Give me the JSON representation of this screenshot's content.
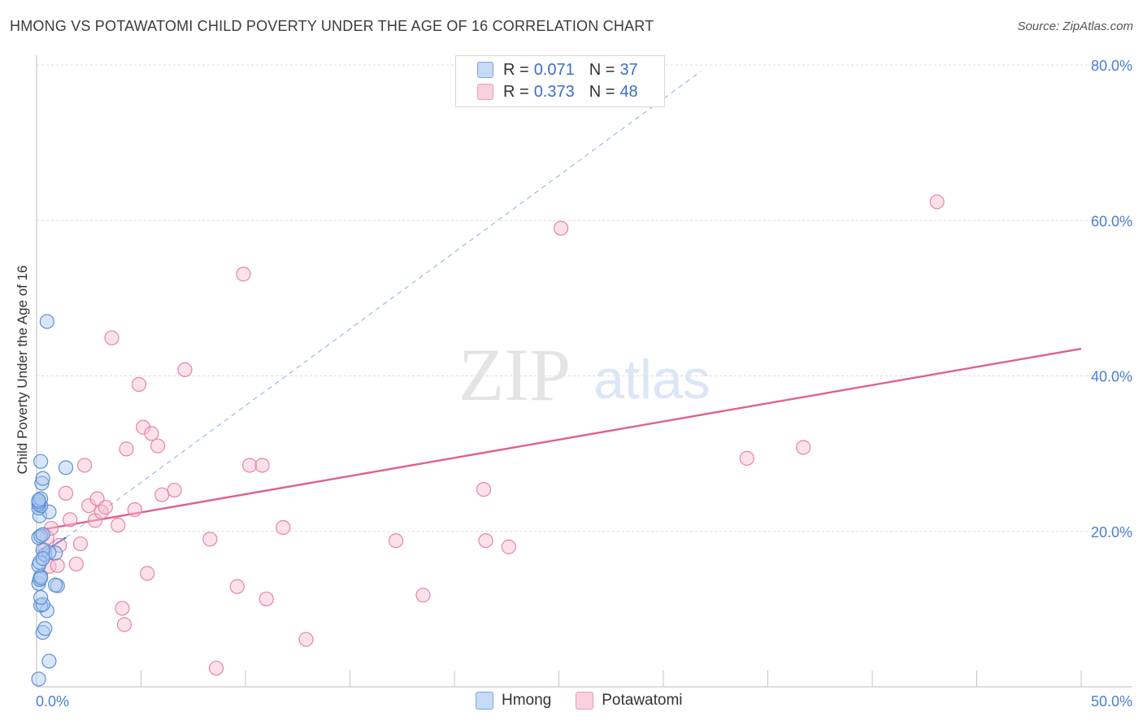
{
  "header": {
    "title": "HMONG VS POTAWATOMI CHILD POVERTY UNDER THE AGE OF 16 CORRELATION CHART",
    "source": "Source: ZipAtlas.com"
  },
  "watermark": {
    "zip": "ZIP",
    "atlas": "atlas"
  },
  "legend": {
    "hmong": {
      "r_label": "R =",
      "r_value": "0.071",
      "n_label": "N =",
      "n_value": "37"
    },
    "potawatomi": {
      "r_label": "R =",
      "r_value": "0.373",
      "n_label": "N =",
      "n_value": "48"
    }
  },
  "bottom_legend": {
    "hmong": "Hmong",
    "potawatomi": "Potawatomi"
  },
  "colors": {
    "hmong_fill": "#a9c8f0",
    "hmong_stroke": "#5b8fd6",
    "hmong_line": "#3f72c8",
    "potawatomi_fill": "#f6bfd0",
    "potawatomi_stroke": "#e9849f",
    "potawatomi_line": "#e0608e",
    "tick_text": "#4a7fd1",
    "grid": "#dcdcdc"
  },
  "chart_data": {
    "type": "scatter",
    "title": "HMONG VS POTAWATOMI CHILD POVERTY UNDER THE AGE OF 16 CORRELATION CHART",
    "xlabel": "",
    "ylabel": "Child Poverty Under the Age of 16",
    "xlim": [
      0,
      50
    ],
    "ylim": [
      0,
      80
    ],
    "x_tick_labels": [
      {
        "value": 0,
        "label": "0.0%"
      },
      {
        "value": 50,
        "label": "50.0%"
      }
    ],
    "y_tick_labels": [
      {
        "value": 20,
        "label": "20.0%"
      },
      {
        "value": 40,
        "label": "40.0%"
      },
      {
        "value": 60,
        "label": "60.0%"
      },
      {
        "value": 80,
        "label": "80.0%"
      }
    ],
    "x_minor_ticks": [
      5,
      10,
      15,
      20,
      25,
      30,
      35,
      40,
      45,
      50
    ],
    "y_gridlines": [
      20,
      40,
      60,
      80
    ],
    "series": [
      {
        "name": "Hmong",
        "key": "hmong",
        "points": [
          [
            0.1,
            1.0
          ],
          [
            0.6,
            3.3
          ],
          [
            0.3,
            7.0
          ],
          [
            0.4,
            7.5
          ],
          [
            0.5,
            9.8
          ],
          [
            0.2,
            10.5
          ],
          [
            0.3,
            10.6
          ],
          [
            0.2,
            11.5
          ],
          [
            1.0,
            13.0
          ],
          [
            0.9,
            13.1
          ],
          [
            0.1,
            13.3
          ],
          [
            0.15,
            13.8
          ],
          [
            0.2,
            14.2
          ],
          [
            0.1,
            15.6
          ],
          [
            0.15,
            16.0
          ],
          [
            0.4,
            17.0
          ],
          [
            0.9,
            17.2
          ],
          [
            0.6,
            17.3
          ],
          [
            0.3,
            17.6
          ],
          [
            0.1,
            19.2
          ],
          [
            0.2,
            19.4
          ],
          [
            0.3,
            19.6
          ],
          [
            0.15,
            22.0
          ],
          [
            0.6,
            22.5
          ],
          [
            0.1,
            23.0
          ],
          [
            0.2,
            23.3
          ],
          [
            0.1,
            23.5
          ],
          [
            0.1,
            23.8
          ],
          [
            0.2,
            24.2
          ],
          [
            0.25,
            26.2
          ],
          [
            0.3,
            26.8
          ],
          [
            0.2,
            29.0
          ],
          [
            1.4,
            28.2
          ],
          [
            0.5,
            47.0
          ],
          [
            0.1,
            24.0
          ],
          [
            0.2,
            14.0
          ],
          [
            0.3,
            16.5
          ]
        ],
        "trend": {
          "x": [
            0.0,
            1.4
          ],
          "y": [
            16.8,
            19.2
          ]
        },
        "trend_extended": {
          "x": [
            1.4,
            31.8
          ],
          "y": [
            19.2,
            79.2
          ]
        }
      },
      {
        "name": "Potawatomi",
        "key": "potawatomi",
        "points": [
          [
            0.4,
            17.6
          ],
          [
            0.5,
            19.2
          ],
          [
            0.6,
            15.5
          ],
          [
            0.7,
            20.4
          ],
          [
            1.0,
            15.6
          ],
          [
            1.1,
            18.2
          ],
          [
            1.4,
            24.9
          ],
          [
            1.6,
            21.5
          ],
          [
            1.9,
            15.8
          ],
          [
            2.1,
            18.4
          ],
          [
            2.3,
            28.5
          ],
          [
            2.5,
            23.3
          ],
          [
            2.8,
            21.4
          ],
          [
            2.9,
            24.2
          ],
          [
            3.1,
            22.5
          ],
          [
            3.3,
            23.1
          ],
          [
            3.6,
            44.9
          ],
          [
            3.9,
            20.8
          ],
          [
            4.1,
            10.1
          ],
          [
            4.2,
            8.0
          ],
          [
            4.3,
            30.6
          ],
          [
            4.7,
            22.8
          ],
          [
            4.9,
            38.9
          ],
          [
            5.1,
            33.4
          ],
          [
            5.3,
            14.6
          ],
          [
            5.5,
            32.6
          ],
          [
            5.8,
            31.0
          ],
          [
            6.0,
            24.7
          ],
          [
            6.6,
            25.3
          ],
          [
            7.1,
            40.8
          ],
          [
            8.3,
            19.0
          ],
          [
            8.6,
            2.4
          ],
          [
            9.6,
            12.9
          ],
          [
            9.9,
            53.1
          ],
          [
            10.2,
            28.5
          ],
          [
            10.8,
            28.5
          ],
          [
            11.0,
            11.3
          ],
          [
            11.8,
            20.5
          ],
          [
            12.9,
            6.1
          ],
          [
            17.2,
            18.8
          ],
          [
            18.5,
            11.8
          ],
          [
            21.4,
            25.4
          ],
          [
            21.5,
            18.8
          ],
          [
            22.6,
            18.0
          ],
          [
            25.1,
            59.0
          ],
          [
            34.0,
            29.4
          ],
          [
            36.7,
            30.8
          ],
          [
            43.1,
            62.4
          ]
        ],
        "trend": {
          "x": [
            0.0,
            50.0
          ],
          "y": [
            20.1,
            43.5
          ]
        }
      }
    ]
  }
}
